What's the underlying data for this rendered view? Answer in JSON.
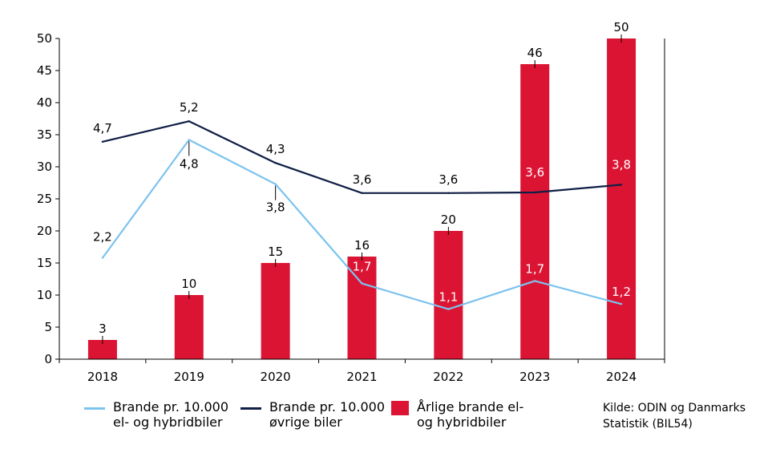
{
  "colors": {
    "bar": "#dc1434",
    "line_ev": "#7cc3ee",
    "line_other": "#0f1e45",
    "axis": "#000000"
  },
  "chart_data": {
    "type": "bar",
    "categories": [
      "2018",
      "2019",
      "2020",
      "2021",
      "2022",
      "2023",
      "2024"
    ],
    "ylim": [
      0,
      50
    ],
    "yticks": [
      0,
      5,
      10,
      15,
      20,
      25,
      30,
      35,
      40,
      45,
      50
    ],
    "series": [
      {
        "name_lines": [
          "Årlige brande el-",
          "og hybridbiler"
        ],
        "kind": "bar",
        "values": [
          3,
          10,
          15,
          16,
          20,
          46,
          50
        ],
        "labels": [
          "3",
          "10",
          "15",
          "16",
          "20",
          "46",
          "50"
        ]
      },
      {
        "name_lines": [
          "Brande pr. 10.000",
          "el- og hybridbiler"
        ],
        "kind": "line",
        "values": [
          15.8,
          34.2,
          27.3,
          11.8,
          7.8,
          12.2,
          8.6
        ],
        "labels": [
          "2,2",
          "4,8",
          "3,8",
          "1,7",
          "1,1",
          "1,7",
          "1,2"
        ]
      },
      {
        "name_lines": [
          "Brande pr. 10.000",
          "øvrige biler"
        ],
        "kind": "line",
        "values": [
          33.9,
          37.1,
          30.6,
          25.9,
          25.9,
          26.0,
          27.2
        ],
        "labels": [
          "4,7",
          "5,2",
          "4,3",
          "3,6",
          "3,6",
          "3,6",
          "3,8"
        ]
      }
    ]
  },
  "source": {
    "lines": [
      "Kilde: ODIN og Danmarks",
      "Statistik (BIL54)"
    ]
  }
}
